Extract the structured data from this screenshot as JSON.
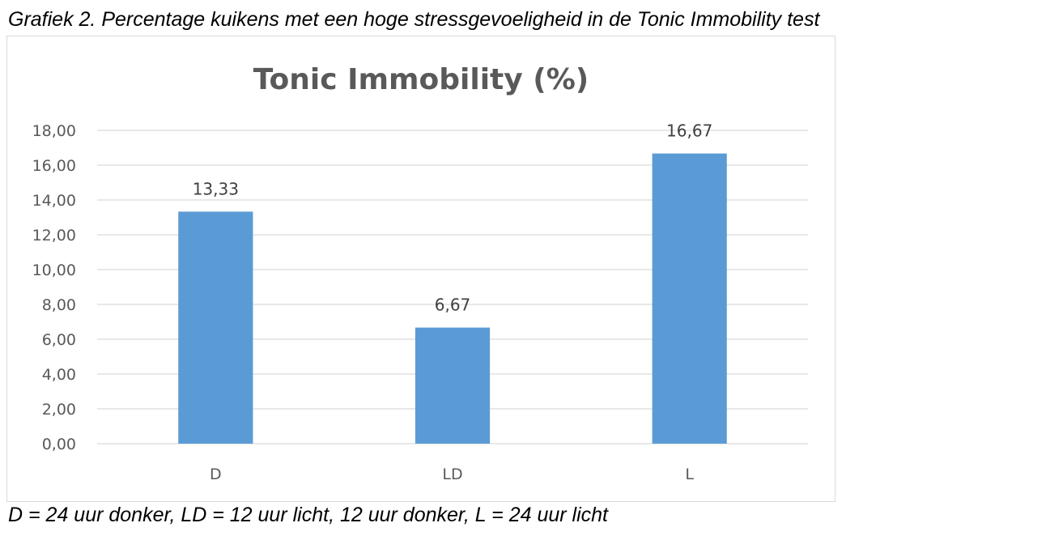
{
  "caption_top": "Grafiek 2. Percentage kuikens met een hoge stressgevoeligheid in de Tonic Immobility test",
  "caption_bottom": "D = 24 uur donker, LD = 12 uur licht, 12 uur donker, L = 24 uur licht",
  "chart_data": {
    "type": "bar",
    "title": "Tonic Immobility (%)",
    "categories": [
      "D",
      "LD",
      "L"
    ],
    "values": [
      13.33,
      6.67,
      16.67
    ],
    "data_labels": [
      "13,33",
      "6,67",
      "16,67"
    ],
    "ylim": [
      0,
      18
    ],
    "yticks": [
      "0,00",
      "2,00",
      "4,00",
      "6,00",
      "8,00",
      "10,00",
      "12,00",
      "14,00",
      "16,00",
      "18,00"
    ],
    "xlabel": "",
    "ylabel": "",
    "grid": true,
    "legend": "none",
    "bar_color": "#5b9bd5",
    "grid_color": "#d9d9d9"
  }
}
